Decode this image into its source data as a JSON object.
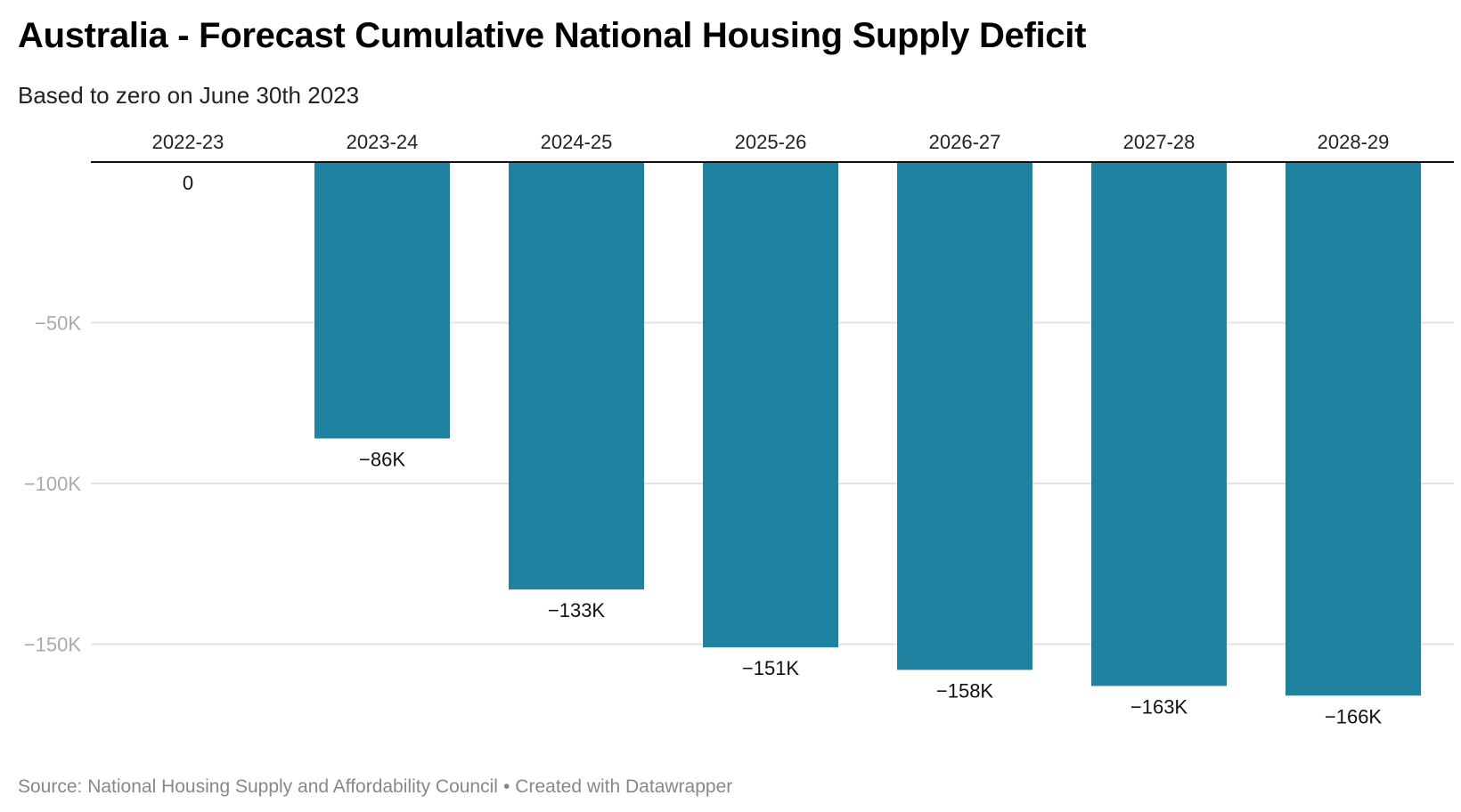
{
  "header": {
    "title": "Australia - Forecast Cumulative National Housing Supply Deficit",
    "subtitle": "Based to zero on June 30th 2023"
  },
  "footer": {
    "source": "Source: National Housing Supply and Affordability Council",
    "separator": "•",
    "credit": "Created with Datawrapper"
  },
  "chart_data": {
    "type": "bar",
    "title": "Australia - Forecast Cumulative National Housing Supply Deficit",
    "subtitle": "Based to zero on June 30th 2023",
    "xlabel": "",
    "ylabel": "",
    "categories": [
      "2022-23",
      "2023-24",
      "2024-25",
      "2025-26",
      "2026-27",
      "2027-28",
      "2028-29"
    ],
    "values": [
      0,
      -86000,
      -133000,
      -151000,
      -158000,
      -163000,
      -166000
    ],
    "value_labels": [
      "0",
      "−86K",
      "−133K",
      "−151K",
      "−158K",
      "−163K",
      "−166K"
    ],
    "yticks": [
      -50000,
      -100000,
      -150000
    ],
    "ytick_labels": [
      "−50K",
      "−100K",
      "−150K"
    ],
    "ylim": [
      -170000,
      0
    ],
    "grid": true,
    "category_axis_position": "top",
    "bar_color": "#1f82a1",
    "legend": "none"
  }
}
